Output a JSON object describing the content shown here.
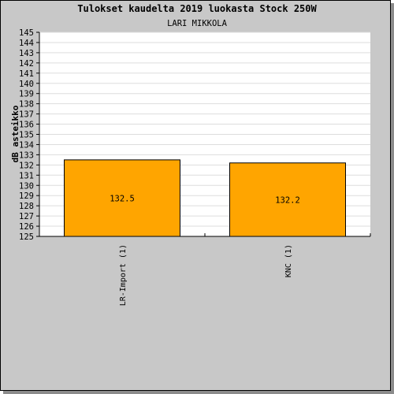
{
  "chart_data": {
    "type": "bar",
    "title": "Tulokset kaudelta 2019 luokasta Stock 250W",
    "subtitle": "LARI MIKKOLA",
    "ylabel": "dB asteikko",
    "xlabel": "",
    "ylim": [
      125,
      145
    ],
    "ytick_step": 1,
    "grid": true,
    "categories": [
      "LR-Import (1)",
      "KNC (1)"
    ],
    "values": [
      132.5,
      132.2
    ],
    "value_labels": [
      "132.5",
      "132.2"
    ],
    "bar_color": "#ffa500",
    "background_color": "#c8c8c8",
    "plot_background_color": "#ffffff",
    "grid_color": "#dddddd"
  }
}
